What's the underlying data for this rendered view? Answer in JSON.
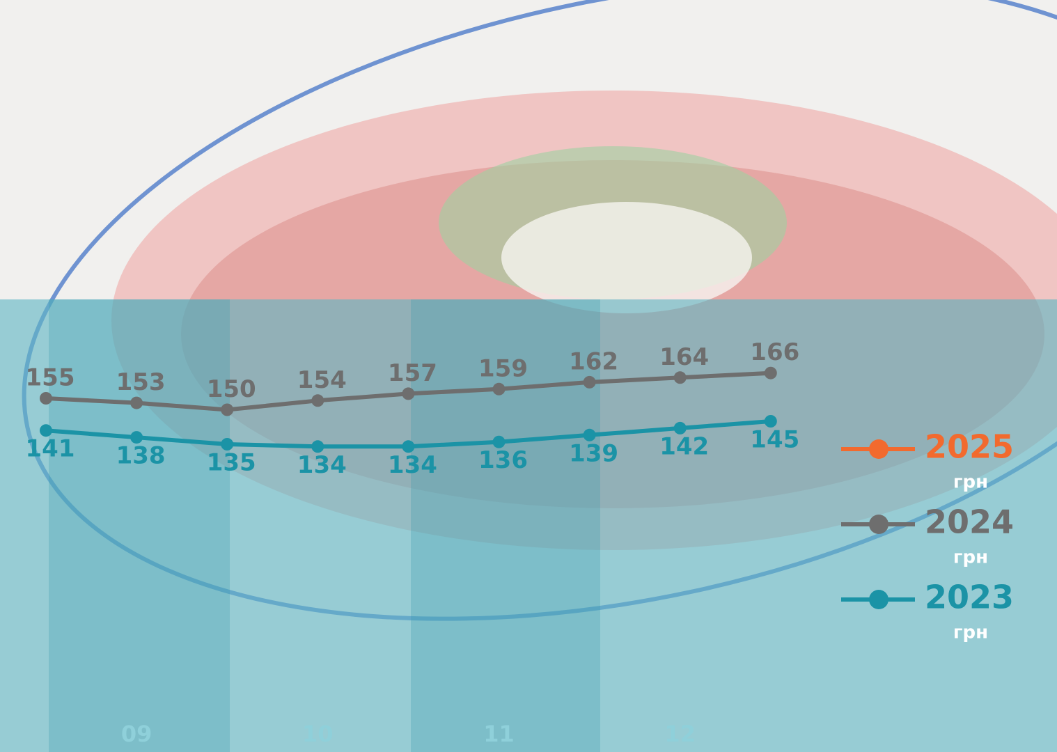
{
  "chart_data": {
    "type": "line",
    "categories": [
      null,
      "09",
      null,
      "10",
      null,
      "11",
      null,
      "12",
      null
    ],
    "series": [
      {
        "name": "2025",
        "color": "#f26a2e",
        "values": [
          null,
          null,
          null,
          null,
          null,
          null,
          null,
          null,
          null
        ]
      },
      {
        "name": "2024",
        "color": "#6e6e6e",
        "values": [
          155,
          153,
          150,
          154,
          157,
          159,
          162,
          164,
          166
        ]
      },
      {
        "name": "2023",
        "color": "#1b93a6",
        "values": [
          141,
          138,
          135,
          134,
          134,
          136,
          139,
          142,
          145
        ]
      }
    ],
    "unit": "грн",
    "ylim": [
      100,
      200
    ]
  }
}
